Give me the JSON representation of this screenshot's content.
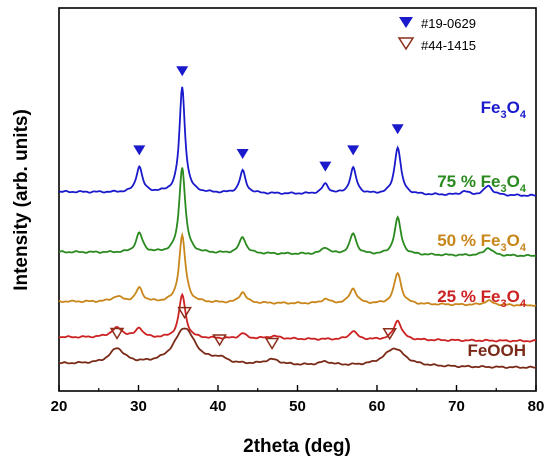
{
  "chart_data": {
    "type": "line",
    "title": "",
    "xlabel": "2theta (deg)",
    "ylabel": "Intensity (arb. units)",
    "xlim": [
      20,
      80
    ],
    "xticks": [
      "20",
      "30",
      "40",
      "50",
      "60",
      "70",
      "80"
    ],
    "y_ticks_shown": false,
    "grid": false,
    "legend": {
      "position": "top-right",
      "entries": [
        {
          "label": "#19-0629",
          "marker": "filled-down-triangle",
          "color": "#1a1acc"
        },
        {
          "label": "#44-1415",
          "marker": "open-down-triangle",
          "color": "#8b2e1a"
        }
      ]
    },
    "series": [
      {
        "label_prefix": "",
        "label_formula": "Fe",
        "label_sub": "3",
        "label_mid": "O",
        "label_sub2": "4",
        "color": "#1a1acc",
        "offset": 4.0,
        "peaks": [
          {
            "x": 30.1,
            "h": 0.6,
            "w": 0.45
          },
          {
            "x": 35.5,
            "h": 2.45,
            "w": 0.42
          },
          {
            "x": 43.1,
            "h": 0.52,
            "w": 0.45
          },
          {
            "x": 53.5,
            "h": 0.22,
            "w": 0.5
          },
          {
            "x": 57.0,
            "h": 0.6,
            "w": 0.48
          },
          {
            "x": 62.6,
            "h": 1.1,
            "w": 0.48
          },
          {
            "x": 71.0,
            "h": 0.08,
            "w": 0.6
          },
          {
            "x": 74.0,
            "h": 0.22,
            "w": 0.6
          }
        ],
        "background": 0.05
      },
      {
        "label_prefix": "75 % ",
        "label_formula": "Fe",
        "label_sub": "3",
        "label_mid": "O",
        "label_sub2": "4",
        "color": "#2a8a1f",
        "offset": 2.6,
        "peaks": [
          {
            "x": 30.1,
            "h": 0.45,
            "w": 0.5
          },
          {
            "x": 35.5,
            "h": 2.0,
            "w": 0.45
          },
          {
            "x": 43.1,
            "h": 0.38,
            "w": 0.5
          },
          {
            "x": 53.5,
            "h": 0.15,
            "w": 0.55
          },
          {
            "x": 57.0,
            "h": 0.48,
            "w": 0.5
          },
          {
            "x": 62.6,
            "h": 0.85,
            "w": 0.5
          },
          {
            "x": 74.0,
            "h": 0.18,
            "w": 0.6
          }
        ],
        "background": 0.05
      },
      {
        "label_prefix": "50 % ",
        "label_formula": "Fe",
        "label_sub": "3",
        "label_mid": "O",
        "label_sub2": "4",
        "color": "#c8861b",
        "offset": 1.45,
        "peaks": [
          {
            "x": 27.3,
            "h": 0.12,
            "w": 0.8
          },
          {
            "x": 30.1,
            "h": 0.32,
            "w": 0.5
          },
          {
            "x": 35.5,
            "h": 1.55,
            "w": 0.48
          },
          {
            "x": 43.1,
            "h": 0.25,
            "w": 0.5
          },
          {
            "x": 53.5,
            "h": 0.1,
            "w": 0.6
          },
          {
            "x": 57.0,
            "h": 0.35,
            "w": 0.55
          },
          {
            "x": 62.6,
            "h": 0.72,
            "w": 0.55
          },
          {
            "x": 74.0,
            "h": 0.1,
            "w": 0.6
          }
        ],
        "background": 0.05
      },
      {
        "label_prefix": "25 % ",
        "label_formula": "Fe",
        "label_sub": "3",
        "label_mid": "O",
        "label_sub2": "4",
        "color": "#cc2222",
        "offset": 0.62,
        "peaks": [
          {
            "x": 27.3,
            "h": 0.22,
            "w": 0.9
          },
          {
            "x": 30.1,
            "h": 0.22,
            "w": 0.5
          },
          {
            "x": 35.5,
            "h": 1.0,
            "w": 0.5
          },
          {
            "x": 43.1,
            "h": 0.12,
            "w": 0.5
          },
          {
            "x": 47.0,
            "h": 0.06,
            "w": 1.0
          },
          {
            "x": 57.0,
            "h": 0.2,
            "w": 0.55
          },
          {
            "x": 62.6,
            "h": 0.45,
            "w": 0.6
          }
        ],
        "background": 0.05
      },
      {
        "label_prefix": "",
        "label_formula": "FeOOH",
        "label_sub": "",
        "label_mid": "",
        "label_sub2": "",
        "color": "#7a2a18",
        "offset": 0.0,
        "peaks": [
          {
            "x": 27.3,
            "h": 0.35,
            "w": 1.1
          },
          {
            "x": 35.8,
            "h": 0.85,
            "w": 1.6
          },
          {
            "x": 40.2,
            "h": 0.12,
            "w": 1.0
          },
          {
            "x": 46.8,
            "h": 0.12,
            "w": 1.2
          },
          {
            "x": 53.5,
            "h": 0.08,
            "w": 1.0
          },
          {
            "x": 62.2,
            "h": 0.42,
            "w": 1.6
          }
        ],
        "background": 0.05
      }
    ],
    "markers": {
      "filled": [
        30.1,
        35.5,
        43.1,
        53.5,
        57.0,
        62.6
      ],
      "open": [
        27.3,
        35.8,
        40.2,
        46.8,
        61.6
      ]
    }
  }
}
